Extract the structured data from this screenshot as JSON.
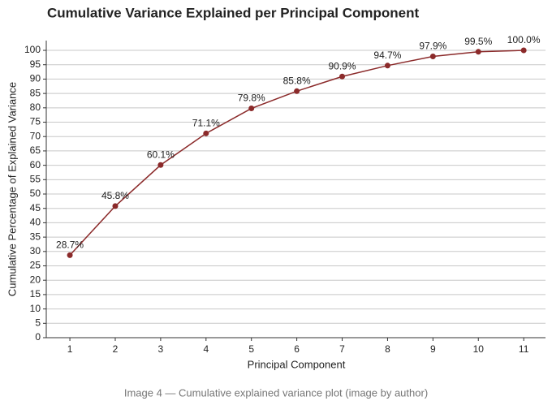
{
  "chart_data": {
    "type": "line",
    "title": "Cumulative Variance Explained per Principal Component",
    "x_label": "Principal Component",
    "y_label": "Cumulative Percentage of Explained Variance",
    "x": [
      1,
      2,
      3,
      4,
      5,
      6,
      7,
      8,
      9,
      10,
      11
    ],
    "values": [
      28.7,
      45.8,
      60.1,
      71.1,
      79.8,
      85.8,
      90.9,
      94.7,
      97.9,
      99.5,
      100.0
    ],
    "value_labels": [
      "28.7%",
      "45.8%",
      "60.1%",
      "71.1%",
      "79.8%",
      "85.8%",
      "90.9%",
      "94.7%",
      "97.9%",
      "99.5%",
      "100.0%"
    ],
    "color": "#8b2a2a",
    "xlim": [
      0.48,
      11.48
    ],
    "ylim": [
      0,
      103.4
    ],
    "xticks": [
      1,
      2,
      3,
      4,
      5,
      6,
      7,
      8,
      9,
      10,
      11
    ],
    "yticks": [
      0,
      5,
      10,
      15,
      20,
      25,
      30,
      35,
      40,
      45,
      50,
      55,
      60,
      65,
      70,
      75,
      80,
      85,
      90,
      95,
      100
    ],
    "grid": true
  },
  "caption": "Image 4 — Cumulative explained variance plot (image by author)"
}
